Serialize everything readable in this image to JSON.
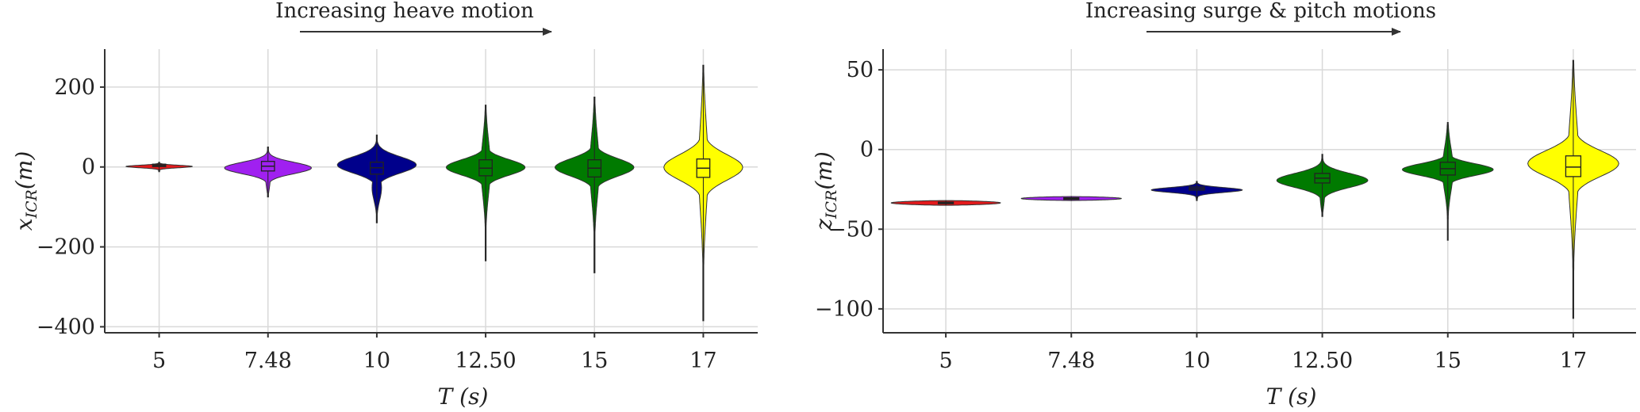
{
  "chart_data": [
    {
      "type": "violin",
      "categories": [
        "5",
        "7.48",
        "10",
        "12.50",
        "15",
        "17"
      ],
      "xlabel": "T (s)",
      "ylabel": "x_ICR (m)",
      "ylim": [
        -415,
        295
      ],
      "yticks": [
        200,
        0,
        -200,
        -400
      ],
      "ytick_labels": [
        "200",
        "0",
        "−200",
        "−400"
      ],
      "grid": true,
      "annotation": {
        "text": "Increasing heave motion",
        "arrow": "right"
      },
      "series": [
        {
          "category": "5",
          "color": "#e31a1c",
          "min": -12,
          "max": 12,
          "q1": 1,
          "median": 4,
          "q3": 7,
          "spread": 0.42,
          "shape": "tight"
        },
        {
          "category": "7.48",
          "color": "#a020f0",
          "min": -75,
          "max": 50,
          "q1": -10,
          "median": 2,
          "q3": 14,
          "spread": 0.55,
          "shape": "mid"
        },
        {
          "category": "10",
          "color": "#00008b",
          "min": -140,
          "max": 80,
          "q1": -18,
          "median": -2,
          "q3": 12,
          "spread": 0.5,
          "shape": "wide"
        },
        {
          "category": "12.50",
          "color": "#007a00",
          "min": -235,
          "max": 155,
          "q1": -22,
          "median": -3,
          "q3": 18,
          "spread": 0.5,
          "shape": "long"
        },
        {
          "category": "15",
          "color": "#007a00",
          "min": -265,
          "max": 175,
          "q1": -25,
          "median": -3,
          "q3": 18,
          "spread": 0.5,
          "shape": "long"
        },
        {
          "category": "17",
          "color": "#ffff00",
          "min": -385,
          "max": 255,
          "q1": -26,
          "median": -3,
          "q3": 20,
          "spread": 0.5,
          "shape": "long"
        }
      ]
    },
    {
      "type": "violin",
      "categories": [
        "5",
        "7.48",
        "10",
        "12.50",
        "15",
        "17"
      ],
      "xlabel": "T (s)",
      "ylabel": "z_ICR (m)",
      "ylim": [
        -115,
        63
      ],
      "yticks": [
        50,
        0,
        -50,
        -100
      ],
      "ytick_labels": [
        "50",
        "0",
        "−50",
        "−100"
      ],
      "grid": true,
      "annotation": {
        "text": "Increasing surge & pitch motions",
        "arrow": "right"
      },
      "series": [
        {
          "category": "5",
          "color": "#e31a1c",
          "min": -35,
          "max": -32,
          "q1": -34,
          "median": -33.5,
          "q3": -33,
          "spread": 0.6,
          "shape": "flat"
        },
        {
          "category": "7.48",
          "color": "#a020f0",
          "min": -32,
          "max": -29.5,
          "q1": -31,
          "median": -30.7,
          "q3": -30.3,
          "spread": 0.55,
          "shape": "flat"
        },
        {
          "category": "10",
          "color": "#00008b",
          "min": -32,
          "max": -20,
          "q1": -25.5,
          "median": -24.5,
          "q3": -23.5,
          "spread": 0.5,
          "shape": "tight"
        },
        {
          "category": "12.50",
          "color": "#007a00",
          "min": -42,
          "max": -3,
          "q1": -21,
          "median": -18,
          "q3": -15,
          "spread": 0.5,
          "shape": "mid"
        },
        {
          "category": "15",
          "color": "#007a00",
          "min": -57,
          "max": 17,
          "q1": -16,
          "median": -12,
          "q3": -8,
          "spread": 0.5,
          "shape": "long"
        },
        {
          "category": "17",
          "color": "#ffff00",
          "min": -106,
          "max": 56,
          "q1": -17,
          "median": -11,
          "q3": -4,
          "spread": 0.5,
          "shape": "long"
        }
      ]
    }
  ]
}
